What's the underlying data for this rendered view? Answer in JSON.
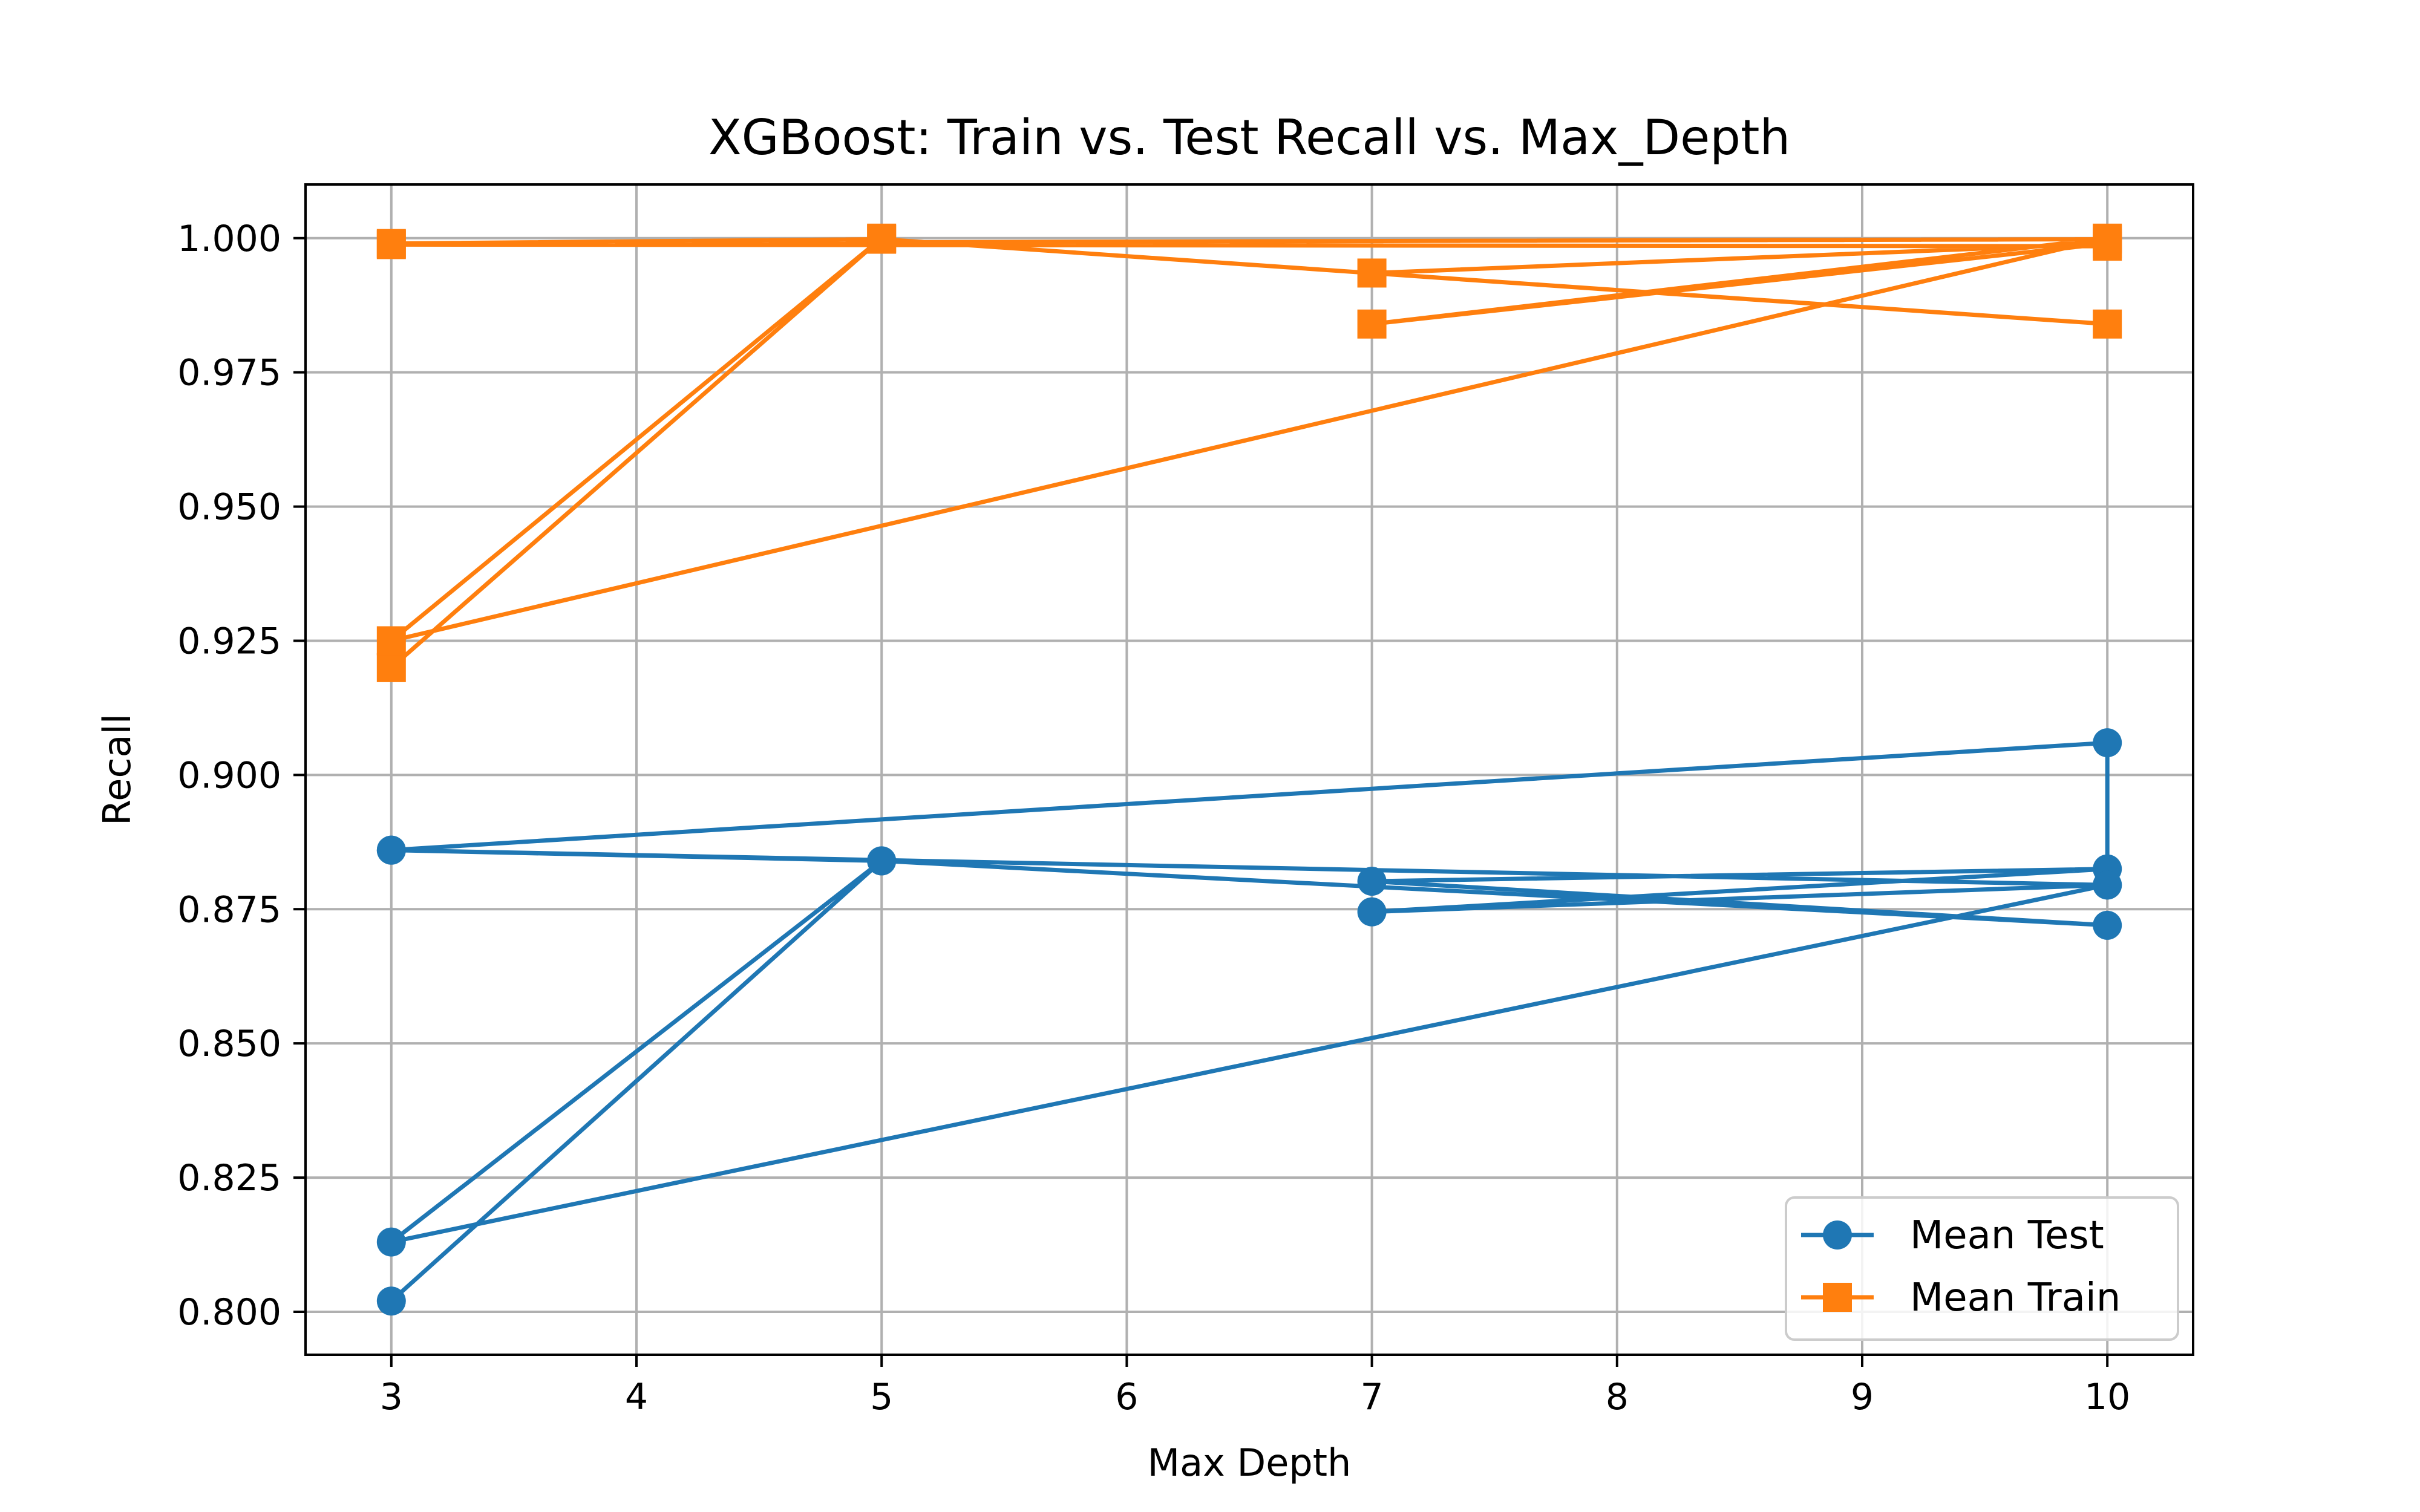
{
  "chart_data": {
    "type": "line",
    "title": "XGBoost: Train vs. Test Recall vs. Max_Depth",
    "xlabel": "Max Depth",
    "ylabel": "Recall",
    "xlim": [
      2.65,
      10.35
    ],
    "ylim": [
      0.792,
      1.01
    ],
    "xticks": [
      3,
      4,
      5,
      6,
      7,
      8,
      9,
      10
    ],
    "yticks": [
      0.8,
      0.825,
      0.85,
      0.875,
      0.9,
      0.925,
      0.95,
      0.975,
      1.0
    ],
    "ytick_labels": [
      "0.800",
      "0.825",
      "0.850",
      "0.875",
      "0.900",
      "0.925",
      "0.950",
      "0.975",
      "1.000"
    ],
    "grid": true,
    "legend_position": "lower-right",
    "series": [
      {
        "name": "Mean Test",
        "color": "#1f77b4",
        "marker": "circle",
        "points": [
          {
            "x": 3,
            "y": 0.802
          },
          {
            "x": 5,
            "y": 0.884
          },
          {
            "x": 3,
            "y": 0.813
          },
          {
            "x": 10,
            "y": 0.8795
          },
          {
            "x": 7,
            "y": 0.8745
          },
          {
            "x": 10,
            "y": 0.8825
          },
          {
            "x": 7,
            "y": 0.8802
          },
          {
            "x": 10,
            "y": 0.872
          },
          {
            "x": 5,
            "y": 0.884
          },
          {
            "x": 3,
            "y": 0.886
          },
          {
            "x": 10,
            "y": 0.906
          },
          {
            "x": 10,
            "y": 0.8795
          },
          {
            "x": 3,
            "y": 0.886
          }
        ]
      },
      {
        "name": "Mean Train",
        "color": "#ff7f0e",
        "marker": "square",
        "points": [
          {
            "x": 3,
            "y": 0.92
          },
          {
            "x": 5,
            "y": 1.0
          },
          {
            "x": 3,
            "y": 0.925
          },
          {
            "x": 10,
            "y": 1.0
          },
          {
            "x": 7,
            "y": 0.984
          },
          {
            "x": 10,
            "y": 0.999
          },
          {
            "x": 7,
            "y": 0.9935
          },
          {
            "x": 10,
            "y": 0.984
          },
          {
            "x": 5,
            "y": 0.9998
          },
          {
            "x": 3,
            "y": 0.999
          },
          {
            "x": 10,
            "y": 0.9998
          },
          {
            "x": 10,
            "y": 0.9985
          },
          {
            "x": 3,
            "y": 0.9988
          }
        ]
      }
    ]
  }
}
